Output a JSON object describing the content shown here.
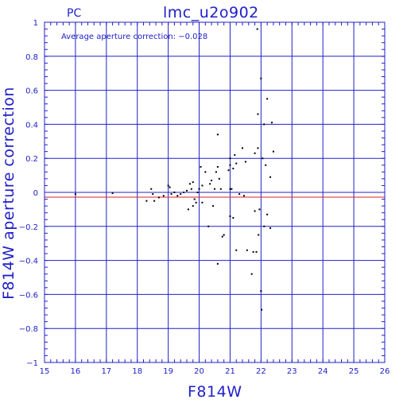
{
  "header": {
    "left_label": "PC",
    "title": "lmc_u2o902"
  },
  "annotation": "Average aperture correction: −0.028",
  "chart_data": {
    "type": "scatter",
    "title": "lmc_u2o902",
    "xlabel": "F814W",
    "ylabel": "F814W aperture correction",
    "xlim": [
      15,
      26
    ],
    "ylim": [
      -1,
      1
    ],
    "x_ticks": [
      15,
      16,
      17,
      18,
      19,
      20,
      21,
      22,
      23,
      24,
      25,
      26
    ],
    "y_ticks": [
      -1,
      -0.8,
      -0.6,
      -0.4,
      -0.2,
      0,
      0.2,
      0.4,
      0.6,
      0.8,
      1
    ],
    "y_tick_labels": [
      "−1",
      "−0.8",
      "−0.6",
      "−0.4",
      "−0.2",
      "0",
      "0.2",
      "0.4",
      "0.6",
      "0.8",
      "1"
    ],
    "grid": true,
    "reference_lines": [
      {
        "y": 0,
        "color": "#2020c8"
      },
      {
        "y": -0.028,
        "color": "#e02020"
      }
    ],
    "colors": {
      "axes": "#2020c8",
      "points": "#000000",
      "mean_line": "#e02020"
    },
    "points": [
      {
        "x": 16.0,
        "y": -0.01
      },
      {
        "x": 17.2,
        "y": -0.005
      },
      {
        "x": 18.3,
        "y": -0.05
      },
      {
        "x": 18.45,
        "y": 0.02
      },
      {
        "x": 18.5,
        "y": -0.01
      },
      {
        "x": 18.55,
        "y": -0.05
      },
      {
        "x": 18.7,
        "y": -0.03
      },
      {
        "x": 18.85,
        "y": -0.02
      },
      {
        "x": 19.0,
        "y": 0.04
      },
      {
        "x": 19.05,
        "y": 0.03
      },
      {
        "x": 19.1,
        "y": -0.01
      },
      {
        "x": 19.2,
        "y": 0.0
      },
      {
        "x": 19.3,
        "y": -0.02
      },
      {
        "x": 19.4,
        "y": -0.01
      },
      {
        "x": 19.5,
        "y": 0.0
      },
      {
        "x": 19.6,
        "y": 0.01
      },
      {
        "x": 19.65,
        "y": -0.1
      },
      {
        "x": 19.7,
        "y": 0.05
      },
      {
        "x": 19.75,
        "y": 0.02
      },
      {
        "x": 19.8,
        "y": 0.06
      },
      {
        "x": 19.8,
        "y": -0.08
      },
      {
        "x": 19.85,
        "y": -0.04
      },
      {
        "x": 19.9,
        "y": -0.06
      },
      {
        "x": 19.95,
        "y": 0.0
      },
      {
        "x": 20.0,
        "y": 0.02
      },
      {
        "x": 20.05,
        "y": 0.15
      },
      {
        "x": 20.1,
        "y": 0.04
      },
      {
        "x": 20.1,
        "y": -0.06
      },
      {
        "x": 20.2,
        "y": 0.12
      },
      {
        "x": 20.3,
        "y": -0.2
      },
      {
        "x": 20.35,
        "y": 0.05
      },
      {
        "x": 20.4,
        "y": 0.07
      },
      {
        "x": 20.45,
        "y": -0.08
      },
      {
        "x": 20.5,
        "y": 0.02
      },
      {
        "x": 20.55,
        "y": 0.12
      },
      {
        "x": 20.6,
        "y": 0.15
      },
      {
        "x": 20.6,
        "y": 0.34
      },
      {
        "x": 20.6,
        "y": -0.42
      },
      {
        "x": 20.65,
        "y": 0.08
      },
      {
        "x": 20.7,
        "y": 0.02
      },
      {
        "x": 20.75,
        "y": -0.26
      },
      {
        "x": 20.8,
        "y": -0.25
      },
      {
        "x": 20.95,
        "y": 0.13
      },
      {
        "x": 21.0,
        "y": 0.2
      },
      {
        "x": 21.0,
        "y": 0.16
      },
      {
        "x": 21.0,
        "y": 0.02
      },
      {
        "x": 21.0,
        "y": -0.14
      },
      {
        "x": 21.05,
        "y": 0.02
      },
      {
        "x": 21.1,
        "y": 0.14
      },
      {
        "x": 21.1,
        "y": -0.15
      },
      {
        "x": 21.15,
        "y": 0.22
      },
      {
        "x": 21.2,
        "y": 0.17
      },
      {
        "x": 21.2,
        "y": -0.34
      },
      {
        "x": 21.3,
        "y": -0.01
      },
      {
        "x": 21.4,
        "y": 0.26
      },
      {
        "x": 21.45,
        "y": -0.02
      },
      {
        "x": 21.5,
        "y": 0.18
      },
      {
        "x": 21.55,
        "y": -0.34
      },
      {
        "x": 21.7,
        "y": -0.48
      },
      {
        "x": 21.75,
        "y": -0.35
      },
      {
        "x": 21.8,
        "y": 0.23
      },
      {
        "x": 21.8,
        "y": -0.11
      },
      {
        "x": 21.85,
        "y": -0.35
      },
      {
        "x": 21.88,
        "y": 0.96
      },
      {
        "x": 21.9,
        "y": 0.46
      },
      {
        "x": 21.9,
        "y": 0.26
      },
      {
        "x": 21.92,
        "y": -0.25
      },
      {
        "x": 21.95,
        "y": -0.1
      },
      {
        "x": 22.0,
        "y": 0.67
      },
      {
        "x": 22.0,
        "y": -0.58
      },
      {
        "x": 22.02,
        "y": -0.69
      },
      {
        "x": 22.05,
        "y": 0.2
      },
      {
        "x": 22.1,
        "y": 0.4
      },
      {
        "x": 22.1,
        "y": -0.2
      },
      {
        "x": 22.15,
        "y": 0.16
      },
      {
        "x": 22.2,
        "y": 0.55
      },
      {
        "x": 22.2,
        "y": -0.13
      },
      {
        "x": 22.3,
        "y": 0.09
      },
      {
        "x": 22.3,
        "y": -0.21
      },
      {
        "x": 22.35,
        "y": 0.41
      },
      {
        "x": 22.4,
        "y": 0.24
      }
    ]
  }
}
